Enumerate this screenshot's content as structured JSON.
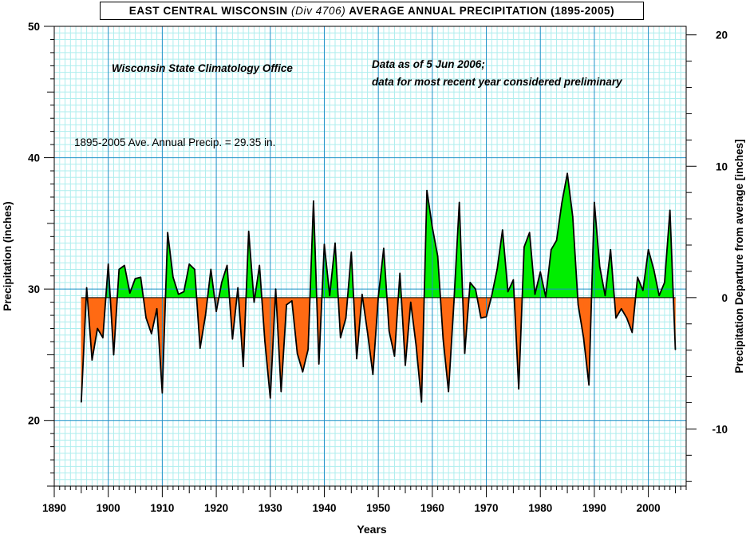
{
  "title": {
    "part1": "EAST CENTRAL WISCONSIN",
    "part2": "(Div 4706)",
    "part3": "AVERAGE ANNUAL PRECIPITATION (1895-2005)"
  },
  "annotations": {
    "source": "Wisconsin State Climatology Office",
    "data_note_1": "Data as of 5 Jun 2006;",
    "data_note_2": "data for most recent year considered preliminary",
    "average_note": "1895-2005 Ave. Annual Precip. = 29.35 in."
  },
  "colors": {
    "above_fill": "#00ee00",
    "below_fill": "#ff6a13",
    "line": "#000000",
    "grid_minor": "#aeeeee",
    "grid_major": "#1e90c8"
  },
  "chart_data": {
    "type": "area",
    "title": "EAST CENTRAL WISCONSIN (Div 4706) AVERAGE ANNUAL PRECIPITATION (1895-2005)",
    "xlabel": "Years",
    "ylabel": "Precipitation (inches)",
    "y2label": "Precipitation Departure from average [inches]",
    "xlim": [
      1890,
      2007
    ],
    "ylim": [
      15,
      50
    ],
    "y2lim": [
      -14.35,
      20.65
    ],
    "baseline": 29.35,
    "x_ticks": [
      1890,
      1900,
      1910,
      1920,
      1930,
      1940,
      1950,
      1960,
      1970,
      1980,
      1990,
      2000
    ],
    "y_ticks": [
      20,
      30,
      40,
      50
    ],
    "y2_ticks": [
      -10,
      0,
      10,
      20
    ],
    "grid": true,
    "x": [
      1895,
      1896,
      1897,
      1898,
      1899,
      1900,
      1901,
      1902,
      1903,
      1904,
      1905,
      1906,
      1907,
      1908,
      1909,
      1910,
      1911,
      1912,
      1913,
      1914,
      1915,
      1916,
      1917,
      1918,
      1919,
      1920,
      1921,
      1922,
      1923,
      1924,
      1925,
      1926,
      1927,
      1928,
      1929,
      1930,
      1931,
      1932,
      1933,
      1934,
      1935,
      1936,
      1937,
      1938,
      1939,
      1940,
      1941,
      1942,
      1943,
      1944,
      1945,
      1946,
      1947,
      1948,
      1949,
      1950,
      1951,
      1952,
      1953,
      1954,
      1955,
      1956,
      1957,
      1958,
      1959,
      1960,
      1961,
      1962,
      1963,
      1964,
      1965,
      1966,
      1967,
      1968,
      1969,
      1970,
      1971,
      1972,
      1973,
      1974,
      1975,
      1976,
      1977,
      1978,
      1979,
      1980,
      1981,
      1982,
      1983,
      1984,
      1985,
      1986,
      1987,
      1988,
      1989,
      1990,
      1991,
      1992,
      1993,
      1994,
      1995,
      1996,
      1997,
      1998,
      1999,
      2000,
      2001,
      2002,
      2003,
      2004,
      2005
    ],
    "series": [
      {
        "values": [
          21.4,
          30.1,
          24.6,
          27.0,
          26.3,
          31.9,
          25.0,
          31.5,
          31.8,
          29.7,
          30.8,
          30.9,
          27.8,
          26.6,
          28.5,
          22.1,
          34.3,
          30.9,
          29.6,
          29.8,
          31.9,
          31.5,
          25.5,
          28.0,
          31.5,
          28.3,
          30.5,
          31.8,
          26.2,
          30.1,
          24.1,
          34.4,
          29.0,
          31.8,
          26.0,
          21.7,
          30.0,
          22.2,
          28.8,
          29.1,
          25.1,
          23.7,
          25.4,
          36.7,
          24.3,
          33.4,
          29.5,
          33.5,
          26.3,
          27.8,
          32.8,
          24.7,
          29.6,
          26.7,
          23.5,
          29.4,
          33.1,
          26.8,
          24.9,
          31.2,
          24.2,
          29.0,
          25.7,
          21.4,
          37.5,
          34.7,
          32.5,
          26.2,
          22.2,
          29.0,
          36.6,
          25.1,
          30.5,
          30.0,
          27.8,
          27.9,
          29.5,
          31.5,
          34.5,
          29.8,
          30.7,
          22.4,
          33.2,
          34.3,
          29.6,
          31.3,
          29.4,
          33.0,
          33.7,
          36.6,
          38.8,
          35.5,
          28.8,
          26.3,
          22.7,
          36.6,
          31.7,
          29.5,
          33.0,
          27.8,
          28.5,
          27.8,
          26.7,
          30.9,
          29.9,
          33.0,
          31.5,
          29.5,
          30.5,
          36.0,
          25.4
        ]
      }
    ]
  }
}
